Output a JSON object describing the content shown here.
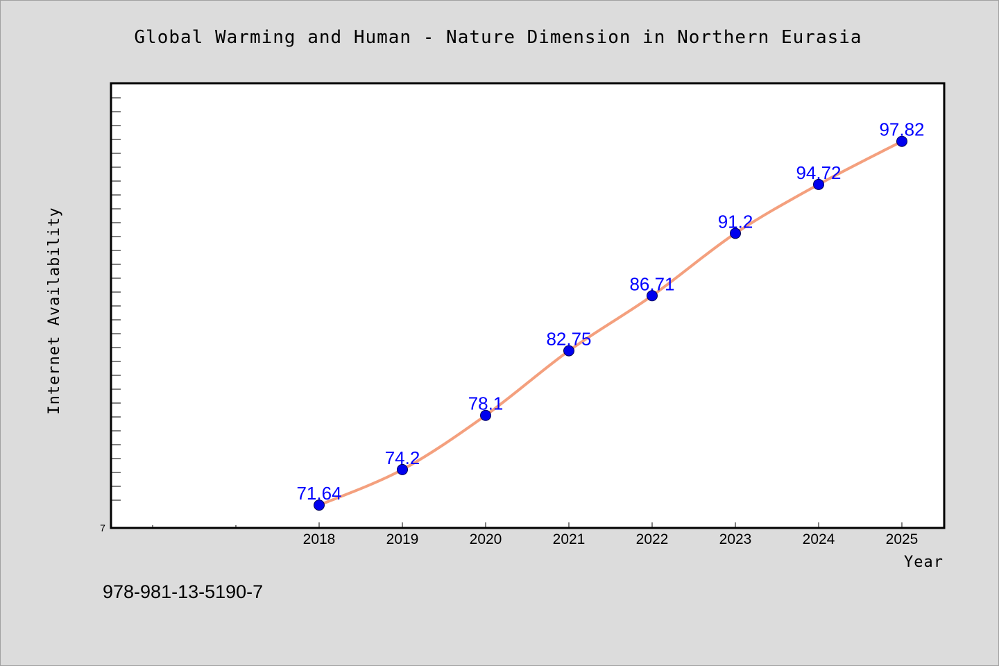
{
  "chart_data": {
    "type": "line",
    "title": "Global Warming and Human - Nature Dimension in Northern Eurasia",
    "xlabel": "Year",
    "ylabel": "Internet Availability",
    "categories": [
      "2018",
      "2019",
      "2020",
      "2021",
      "2022",
      "2023",
      "2024",
      "2025"
    ],
    "series": [
      {
        "values": [
          71.64,
          74.2,
          78.1,
          82.75,
          86.71,
          91.2,
          94.72,
          97.82
        ],
        "data_labels": [
          "71.64",
          "74.2",
          "78.1",
          "82.75",
          "86.71",
          "91.2",
          "94.72",
          "97.82"
        ],
        "line_color": "#f4a07e",
        "marker_color": "#0000ee"
      }
    ],
    "y_tick_labels": [
      "7"
    ],
    "ylim": [
      70,
      102
    ],
    "grid": false,
    "legend": "none"
  },
  "footnote": "978-981-13-5190-7",
  "colors": {
    "background": "#dcdcdc",
    "plot_background": "#ffffff",
    "data_label": "#0000ff"
  }
}
